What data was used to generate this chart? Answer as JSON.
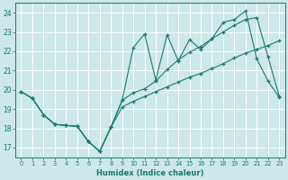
{
  "xlabel": "Humidex (Indice chaleur)",
  "bg_color": "#cce8e8",
  "grid_color": "#ffffff",
  "line_color": "#1a7a6e",
  "xlim": [
    -0.5,
    23.5
  ],
  "ylim": [
    16.5,
    24.5
  ],
  "xticks": [
    0,
    1,
    2,
    3,
    4,
    5,
    6,
    7,
    8,
    9,
    10,
    11,
    12,
    13,
    14,
    15,
    16,
    17,
    18,
    19,
    20,
    21,
    22,
    23
  ],
  "yticks": [
    17,
    18,
    19,
    20,
    21,
    22,
    23,
    24
  ],
  "series1_x": [
    0,
    1,
    2,
    3,
    4,
    5,
    6,
    7,
    8,
    9,
    10,
    11,
    12,
    13,
    14,
    15,
    16,
    17,
    18,
    19,
    20,
    21,
    22,
    23
  ],
  "series1_y": [
    19.9,
    19.55,
    18.7,
    18.2,
    18.15,
    18.1,
    17.3,
    16.8,
    18.05,
    19.45,
    22.2,
    22.9,
    20.5,
    22.85,
    21.5,
    22.6,
    22.1,
    22.65,
    23.5,
    23.65,
    24.1,
    21.6,
    20.45,
    19.6
  ],
  "series2_x": [
    0,
    1,
    2,
    3,
    4,
    5,
    6,
    7,
    8,
    9,
    10,
    11,
    12,
    13,
    14,
    15,
    16,
    17,
    18,
    19,
    20,
    21,
    22,
    23
  ],
  "series2_y": [
    19.9,
    19.55,
    18.7,
    18.2,
    18.15,
    18.1,
    17.3,
    16.8,
    18.05,
    19.45,
    19.85,
    20.05,
    20.45,
    21.05,
    21.55,
    21.95,
    22.25,
    22.65,
    23.0,
    23.35,
    23.65,
    23.75,
    21.7,
    19.65
  ],
  "series3_x": [
    0,
    1,
    2,
    3,
    4,
    5,
    6,
    7,
    8,
    9,
    10,
    11,
    12,
    13,
    14,
    15,
    16,
    17,
    18,
    19,
    20,
    21,
    22,
    23
  ],
  "series3_y": [
    19.9,
    19.55,
    18.7,
    18.2,
    18.15,
    18.1,
    17.3,
    16.8,
    18.05,
    19.1,
    19.4,
    19.65,
    19.9,
    20.15,
    20.4,
    20.65,
    20.85,
    21.1,
    21.35,
    21.65,
    21.9,
    22.1,
    22.3,
    22.55
  ]
}
